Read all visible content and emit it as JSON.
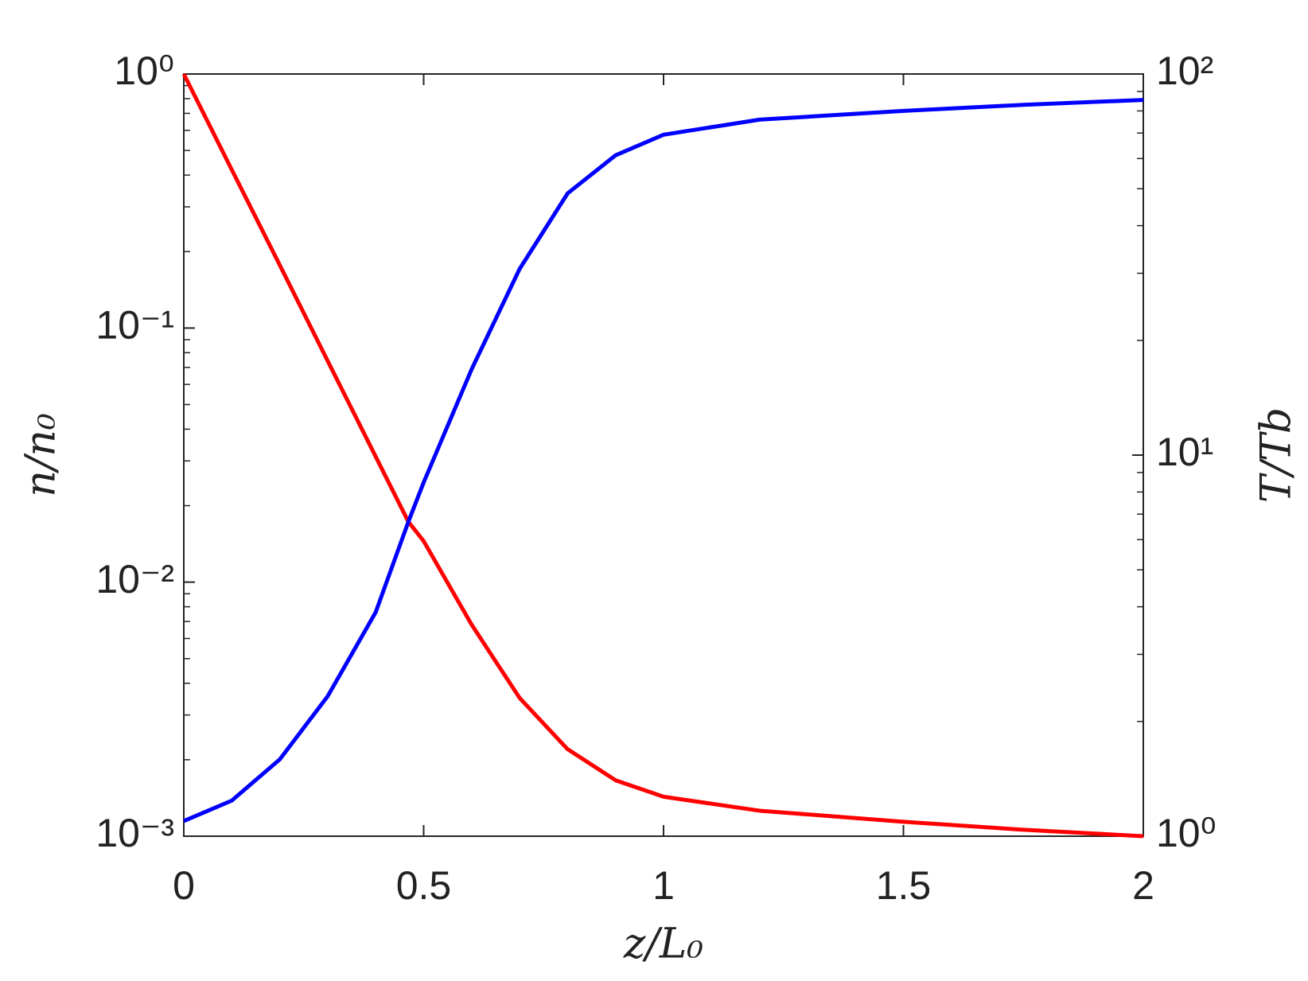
{
  "chart_data": {
    "type": "line",
    "xlabel": "z/L₀",
    "ylabel": "n/n₀",
    "y2label": "T/Tb",
    "x": [
      0,
      0.1,
      0.2,
      0.3,
      0.4,
      0.468,
      0.5,
      0.6,
      0.7,
      0.8,
      0.9,
      1.0,
      1.2,
      1.5,
      1.75,
      2.0
    ],
    "series": [
      {
        "name": "n/n0",
        "color": "#ff0000",
        "axis": "y",
        "values": [
          1,
          0.42,
          0.177,
          0.0742,
          0.0312,
          0.0173,
          0.0145,
          0.0068,
          0.0035,
          0.0022,
          0.00166,
          0.00143,
          0.00126,
          0.00114,
          0.00106,
          0.001
        ]
      },
      {
        "name": "T/Tb",
        "color": "#0000ff",
        "axis": "y2",
        "values": [
          1.096,
          1.24,
          1.59,
          2.33,
          3.87,
          6.68,
          8.48,
          16.8,
          30.8,
          48.6,
          61.2,
          69.3,
          75.9,
          80,
          83,
          85.5
        ]
      }
    ],
    "xlim": [
      0,
      2
    ],
    "xticks": [
      0,
      0.5,
      1,
      1.5,
      2
    ],
    "ylim": [
      0.001,
      1
    ],
    "log_y": true,
    "yticks": [
      {
        "value": 0.001,
        "label": "10⁻³"
      },
      {
        "value": 0.01,
        "label": "10⁻²"
      },
      {
        "value": 0.1,
        "label": "10⁻¹"
      },
      {
        "value": 1,
        "label": "10⁰"
      }
    ],
    "y2lim": [
      1,
      100
    ],
    "log_y2": true,
    "y2ticks": [
      {
        "value": 1,
        "label": "10⁰"
      },
      {
        "value": 10,
        "label": "10¹"
      },
      {
        "value": 100,
        "label": "10²"
      }
    ],
    "grid": false
  }
}
